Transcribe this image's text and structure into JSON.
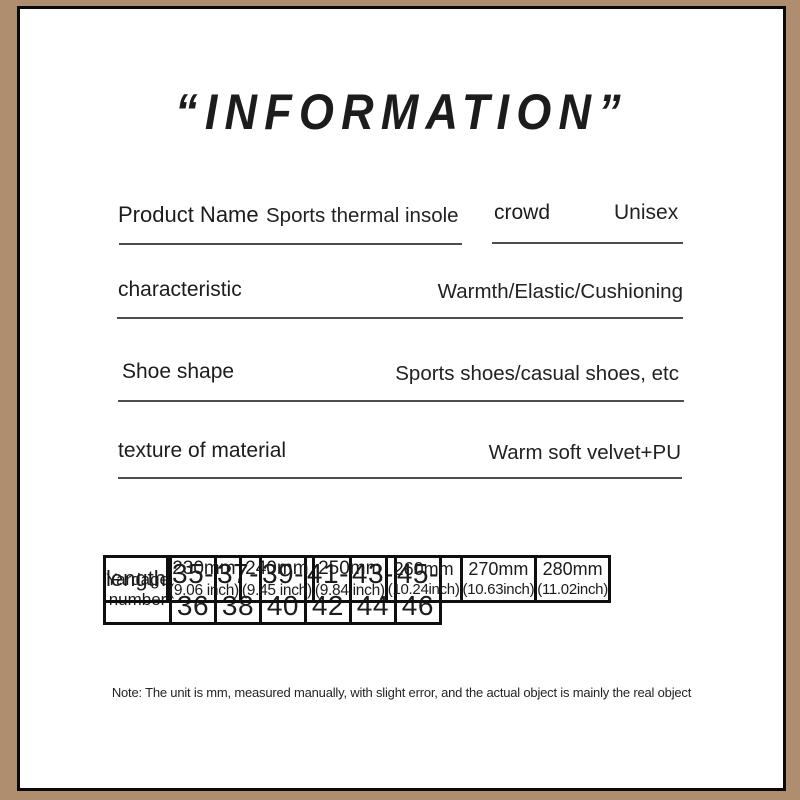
{
  "colors": {
    "frame_tan": "#ae8e6e",
    "frame_line": "#0a0a0a",
    "paper": "#ffffff",
    "ink": "#1c1c1c",
    "rule": "#4d4d4d",
    "table_line": "#0f0f0f"
  },
  "title": "“INFORMATION”",
  "specs": {
    "product": {
      "label": "Product Name",
      "value": "Sports thermal insole"
    },
    "crowd": {
      "label": "crowd",
      "value": "Unisex"
    },
    "characteristic": {
      "label": "characteristic",
      "value": "Warmth/Elastic/Cushioning"
    },
    "shoe_shape": {
      "label": "Shoe shape",
      "value": "Sports shoes/casual shoes, etc"
    },
    "material": {
      "label": "texture of material",
      "value": "Warm soft velvet+PU"
    }
  },
  "size_table": {
    "header_label": "Yardage number",
    "row_label": "length",
    "sizes": [
      "35-36",
      "37-38",
      "39-40",
      "41-42",
      "43-44",
      "45-46"
    ],
    "lengths": [
      {
        "mm": "230mm",
        "inch": "(9.06 inch)"
      },
      {
        "mm": "240mm",
        "inch": "(9.45 inch)"
      },
      {
        "mm": "250mm",
        "inch": "(9.84 inch)"
      },
      {
        "mm": "260mm",
        "inch": "(10.24inch)"
      },
      {
        "mm": "270mm",
        "inch": "(10.63inch)"
      },
      {
        "mm": "280mm",
        "inch": "(11.02inch)"
      }
    ]
  },
  "note": "Note: The unit is mm, measured manually, with slight error, and the actual object is mainly the real object"
}
